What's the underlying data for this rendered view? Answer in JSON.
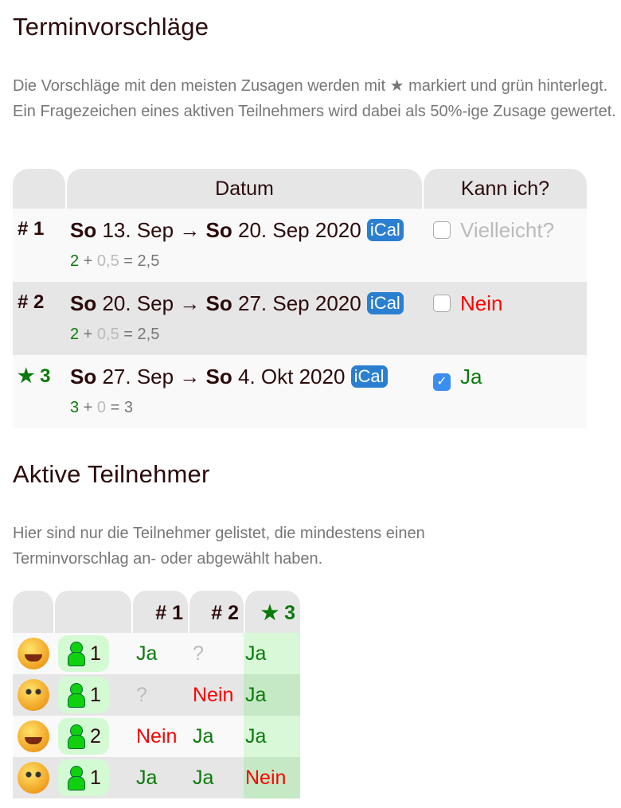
{
  "section1": {
    "title": "Terminvorschläge",
    "info_before": "Die Vorschläge mit den meisten Zusagen werden mit ",
    "info_star": "★",
    "info_after": " markiert und grün hinterlegt. Ein Fragezeichen eines aktiven Teilnehmers wird dabei als 50%-ige Zusage gewertet."
  },
  "proposals_table": {
    "headers": [
      "",
      "Datum",
      "Kann ich?"
    ],
    "rows": [
      {
        "num": "# 1",
        "best": false,
        "from_day": "So",
        "from": " 13. Sep → ",
        "to_day": "So",
        "to": " 20. Sep 2020 ",
        "ical": "iCal",
        "yes": "2",
        "plus": " + ",
        "maybe": "0,5",
        "eq": " = 2,5",
        "checked": false,
        "answer": "Vielleicht?",
        "answer_type": "maybe"
      },
      {
        "num": "# 2",
        "best": false,
        "from_day": "So",
        "from": " 20. Sep → ",
        "to_day": "So",
        "to": " 27. Sep 2020 ",
        "ical": "iCal",
        "yes": "2",
        "plus": " + ",
        "maybe": "0,5",
        "eq": " = 2,5",
        "checked": false,
        "answer": "Nein",
        "answer_type": "nein"
      },
      {
        "num": "★ 3",
        "best": true,
        "from_day": "So",
        "from": " 27. Sep → ",
        "to_day": "So",
        "to": " 4. Okt 2020 ",
        "ical": "iCal",
        "yes": "3",
        "plus": " + ",
        "maybe": "0",
        "eq": " = 3",
        "checked": true,
        "answer": "Ja",
        "answer_type": "ja"
      }
    ]
  },
  "section2": {
    "title": "Aktive Teilnehmer",
    "info": "Hier sind nur die Teilnehmer gelistet, die mindestens einen Terminvorschlag an- oder abgewählt haben."
  },
  "participants_table": {
    "headers": [
      "",
      "",
      "# 1",
      "# 2",
      "★ 3"
    ],
    "rows": [
      {
        "avatar": "smiley-laugh",
        "count": "1",
        "answers": [
          [
            "Ja",
            "ja"
          ],
          [
            "?",
            "maybe"
          ],
          [
            "Ja",
            "ja"
          ]
        ]
      },
      {
        "avatar": "smiley-eyes",
        "count": "1",
        "answers": [
          [
            "?",
            "maybe"
          ],
          [
            "Nein",
            "nein"
          ],
          [
            "Ja",
            "ja"
          ]
        ]
      },
      {
        "avatar": "smiley-laugh",
        "count": "2",
        "answers": [
          [
            "Nein",
            "nein"
          ],
          [
            "Ja",
            "ja"
          ],
          [
            "Ja",
            "ja"
          ]
        ]
      },
      {
        "avatar": "smiley-eyes",
        "count": "1",
        "answers": [
          [
            "Ja",
            "ja"
          ],
          [
            "Ja",
            "ja"
          ],
          [
            "Nein",
            "nein"
          ]
        ]
      }
    ]
  },
  "colors": {
    "yes": "#0a7a0a",
    "no": "#ff0000",
    "maybe": "#bbbbbb",
    "best_bg": "#d8f8d8",
    "ical": "#2a7fd0"
  }
}
